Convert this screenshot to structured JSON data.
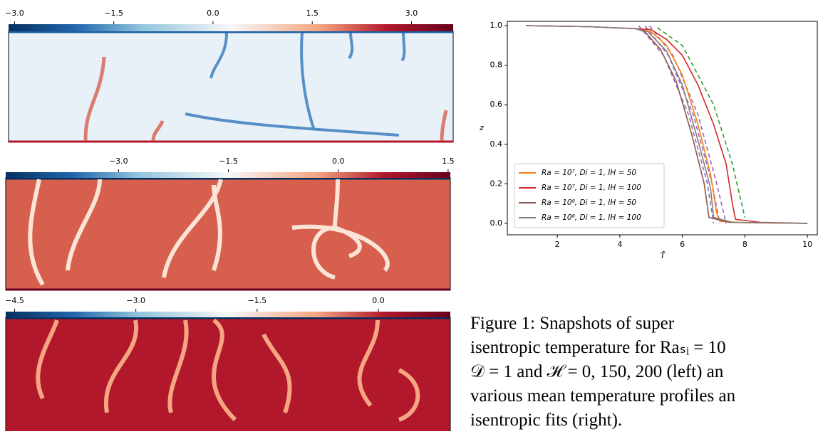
{
  "colorbars": [
    {
      "lim": [
        -3.09,
        3.63
      ],
      "ticks": [
        {
          "value": -3.0,
          "label": "−3.0"
        },
        {
          "value": -1.5,
          "label": "−1.5"
        },
        {
          "value": 0.0,
          "label": "0.0"
        },
        {
          "value": 1.5,
          "label": "1.5"
        },
        {
          "value": 3.0,
          "label": "3.0"
        }
      ]
    },
    {
      "lim": [
        -4.54,
        1.53
      ],
      "ticks": [
        {
          "value": -3.0,
          "label": "−3.0"
        },
        {
          "value": -1.5,
          "label": "−1.5"
        },
        {
          "value": 0.0,
          "label": "0.0"
        },
        {
          "value": 1.5,
          "label": "1.5"
        }
      ]
    },
    {
      "lim": [
        -4.61,
        0.89
      ],
      "ticks": [
        {
          "value": -4.5,
          "label": "−4.5"
        },
        {
          "value": -3.0,
          "label": "−3.0"
        },
        {
          "value": -1.5,
          "label": "−1.5"
        },
        {
          "value": 0.0,
          "label": "0.0"
        }
      ]
    }
  ],
  "chart_data": {
    "type": "line",
    "x_label": "T̄",
    "y_label": "z",
    "xlim": [
      0.4,
      10.34
    ],
    "ylim": [
      -0.058,
      1.022
    ],
    "xticks": [
      2,
      4,
      6,
      8,
      10
    ],
    "yticks": [
      {
        "value": 0.0,
        "label": "0.0"
      },
      {
        "value": 0.2,
        "label": "0.2"
      },
      {
        "value": 0.4,
        "label": "0.4"
      },
      {
        "value": 0.6,
        "label": "0.6"
      },
      {
        "value": 0.8,
        "label": "0.8"
      },
      {
        "value": 1.0,
        "label": "1.0"
      }
    ],
    "legend": "lower left",
    "series": [
      {
        "name": "Ra = 10⁷,  Di = 1,  IH = 50",
        "color": "#ff7f0e",
        "x": [
          1,
          3,
          4.5,
          5.0,
          5.5,
          6.0,
          6.5,
          6.9,
          7.1,
          7.2,
          8.0,
          10
        ],
        "values": [
          1.0,
          0.995,
          0.985,
          0.97,
          0.9,
          0.75,
          0.5,
          0.25,
          0.05,
          0.01,
          0.003,
          0.0
        ]
      },
      {
        "name": "Ra = 10⁷,  Di = 1,  IH = 100",
        "color": "#d62728",
        "x": [
          1,
          3,
          4.5,
          5.0,
          5.5,
          6.0,
          6.5,
          7.0,
          7.4,
          7.6,
          7.7,
          8.5,
          10
        ],
        "values": [
          1.0,
          0.995,
          0.985,
          0.98,
          0.93,
          0.85,
          0.7,
          0.5,
          0.3,
          0.1,
          0.02,
          0.005,
          0.0
        ]
      },
      {
        "name": "Ra = 10⁸,  Di = 1,  IH = 50",
        "color": "#8c564b",
        "x": [
          1,
          3,
          4.5,
          4.8,
          5.3,
          5.8,
          6.3,
          6.7,
          6.85,
          7.5,
          10
        ],
        "values": [
          1.0,
          0.995,
          0.985,
          0.97,
          0.88,
          0.72,
          0.45,
          0.2,
          0.03,
          0.005,
          0.0
        ]
      },
      {
        "name": "Ra = 10⁸,  Di = 1,  IH = 100",
        "color": "#7f7f7f",
        "x": [
          1,
          3,
          4.5,
          4.9,
          5.5,
          6.0,
          6.5,
          6.9,
          7.0,
          7.6,
          10
        ],
        "values": [
          1.0,
          0.995,
          0.985,
          0.97,
          0.87,
          0.7,
          0.42,
          0.18,
          0.03,
          0.005,
          0.0
        ]
      }
    ],
    "fits": [
      {
        "color": "#2ca02c",
        "x": [
          5.2,
          6.0,
          7.0,
          7.6,
          8.0
        ],
        "values": [
          0.99,
          0.9,
          0.6,
          0.3,
          0.03
        ]
      },
      {
        "color": "#9467bd",
        "x": [
          4.6,
          5.4,
          6.2,
          6.8,
          7.0
        ],
        "values": [
          1.0,
          0.85,
          0.55,
          0.2,
          0.0
        ]
      },
      {
        "color": "#9467bd",
        "x": [
          4.8,
          5.55,
          6.35,
          6.95,
          7.2
        ],
        "values": [
          1.0,
          0.85,
          0.55,
          0.2,
          0.0
        ]
      },
      {
        "color": "#9467bd",
        "x": [
          4.95,
          5.7,
          6.5,
          7.1,
          7.4
        ],
        "values": [
          1.0,
          0.85,
          0.55,
          0.2,
          0.0
        ]
      }
    ]
  },
  "caption": {
    "lines": [
      "Figure 1:   Snapshots of super",
      "isentropic temperature for Raₛᵢ = 10",
      "𝒟 = 1 and ℋ = 0, 150, 200 (left) an",
      "various mean temperature profiles an",
      "isentropic fits (right)."
    ]
  }
}
